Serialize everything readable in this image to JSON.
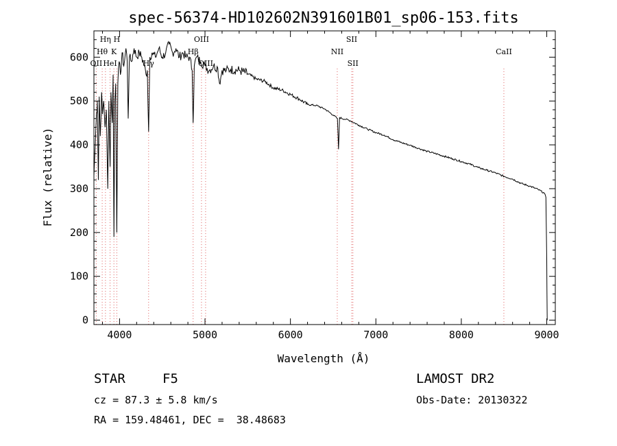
{
  "chart_data": {
    "type": "line",
    "title": "spec-56374-HD102602N391601B01_sp06-153.fits",
    "xlabel": "Wavelength (Å)",
    "ylabel": "Flux (relative)",
    "xlim": [
      3700,
      9100
    ],
    "ylim": [
      -10,
      660
    ],
    "xticks": [
      4000,
      5000,
      6000,
      7000,
      8000,
      9000
    ],
    "yticks": [
      0,
      100,
      200,
      300,
      400,
      500,
      600
    ],
    "grid": false,
    "series": [
      {
        "values": [
          [
            3700,
            330
          ],
          [
            3715,
            400
          ],
          [
            3730,
            470
          ],
          [
            3740,
            500
          ],
          [
            3752,
            320
          ],
          [
            3762,
            510
          ],
          [
            3775,
            420
          ],
          [
            3790,
            520
          ],
          [
            3800,
            470
          ],
          [
            3815,
            500
          ],
          [
            3830,
            440
          ],
          [
            3845,
            480
          ],
          [
            3862,
            300
          ],
          [
            3875,
            500
          ],
          [
            3889,
            350
          ],
          [
            3900,
            520
          ],
          [
            3915,
            450
          ],
          [
            3925,
            560
          ],
          [
            3934,
            190
          ],
          [
            3945,
            500
          ],
          [
            3955,
            540
          ],
          [
            3968,
            200
          ],
          [
            3980,
            540
          ],
          [
            3995,
            590
          ],
          [
            4010,
            560
          ],
          [
            4030,
            610
          ],
          [
            4050,
            580
          ],
          [
            4075,
            620
          ],
          [
            4090,
            590
          ],
          [
            4101,
            460
          ],
          [
            4115,
            600
          ],
          [
            4140,
            590
          ],
          [
            4170,
            620
          ],
          [
            4200,
            600
          ],
          [
            4230,
            610
          ],
          [
            4260,
            600
          ],
          [
            4290,
            580
          ],
          [
            4310,
            560
          ],
          [
            4325,
            570
          ],
          [
            4340,
            430
          ],
          [
            4355,
            600
          ],
          [
            4380,
            610
          ],
          [
            4420,
            600
          ],
          [
            4460,
            620
          ],
          [
            4500,
            600
          ],
          [
            4540,
            610
          ],
          [
            4580,
            630
          ],
          [
            4620,
            610
          ],
          [
            4660,
            620
          ],
          [
            4700,
            600
          ],
          [
            4740,
            610
          ],
          [
            4780,
            600
          ],
          [
            4820,
            600
          ],
          [
            4850,
            570
          ],
          [
            4861,
            450
          ],
          [
            4875,
            580
          ],
          [
            4900,
            600
          ],
          [
            4950,
            590
          ],
          [
            5000,
            580
          ],
          [
            5050,
            570
          ],
          [
            5100,
            580
          ],
          [
            5150,
            575
          ],
          [
            5170,
            540
          ],
          [
            5200,
            570
          ],
          [
            5250,
            570
          ],
          [
            5300,
            572
          ],
          [
            5400,
            570
          ],
          [
            5500,
            562
          ],
          [
            5600,
            550
          ],
          [
            5700,
            545
          ],
          [
            5800,
            530
          ],
          [
            5900,
            525
          ],
          [
            6000,
            515
          ],
          [
            6100,
            505
          ],
          [
            6200,
            492
          ],
          [
            6300,
            490
          ],
          [
            6400,
            482
          ],
          [
            6500,
            468
          ],
          [
            6550,
            460
          ],
          [
            6563,
            390
          ],
          [
            6575,
            462
          ],
          [
            6650,
            458
          ],
          [
            6700,
            455
          ],
          [
            6800,
            445
          ],
          [
            6900,
            436
          ],
          [
            7000,
            428
          ],
          [
            7100,
            422
          ],
          [
            7200,
            412
          ],
          [
            7300,
            405
          ],
          [
            7400,
            399
          ],
          [
            7500,
            392
          ],
          [
            7600,
            385
          ],
          [
            7700,
            380
          ],
          [
            7800,
            374
          ],
          [
            7900,
            368
          ],
          [
            8000,
            362
          ],
          [
            8100,
            356
          ],
          [
            8200,
            348
          ],
          [
            8300,
            342
          ],
          [
            8400,
            336
          ],
          [
            8500,
            328
          ],
          [
            8600,
            322
          ],
          [
            8700,
            312
          ],
          [
            8800,
            306
          ],
          [
            8900,
            298
          ],
          [
            8970,
            290
          ],
          [
            8990,
            280
          ],
          [
            9000,
            140
          ],
          [
            9005,
            0
          ]
        ]
      }
    ],
    "lines": [
      {
        "name": "OII",
        "x": 3727,
        "row": 3
      },
      {
        "name": "Hθ",
        "x": 3797,
        "row": 2
      },
      {
        "name": "Hη",
        "x": 3835,
        "row": 1
      },
      {
        "name": "HeI",
        "x": 3889,
        "row": 3
      },
      {
        "name": "K",
        "x": 3934,
        "row": 2
      },
      {
        "name": "H",
        "x": 3968,
        "row": 1
      },
      {
        "name": "Hγ",
        "x": 4340,
        "row": 3
      },
      {
        "name": "Hβ",
        "x": 4861,
        "row": 2
      },
      {
        "name": "OIII",
        "x": 4959,
        "row": 1
      },
      {
        "name": "OIII",
        "x": 5007,
        "row": 3
      },
      {
        "name": "NII",
        "x": 6548,
        "row": 2
      },
      {
        "name": "SII",
        "x": 6717,
        "row": 1
      },
      {
        "name": "SII",
        "x": 6731,
        "row": 3
      },
      {
        "name": "CaII",
        "x": 8498,
        "row": 2
      }
    ]
  },
  "info": {
    "class_label": "STAR",
    "subclass": "F5",
    "survey": "LAMOST DR2",
    "cz": "cz = 87.3 ± 5.8 km/s",
    "obs_date": "Obs-Date: 20130322",
    "coords": "RA = 159.48461, DEC =  38.48683"
  }
}
